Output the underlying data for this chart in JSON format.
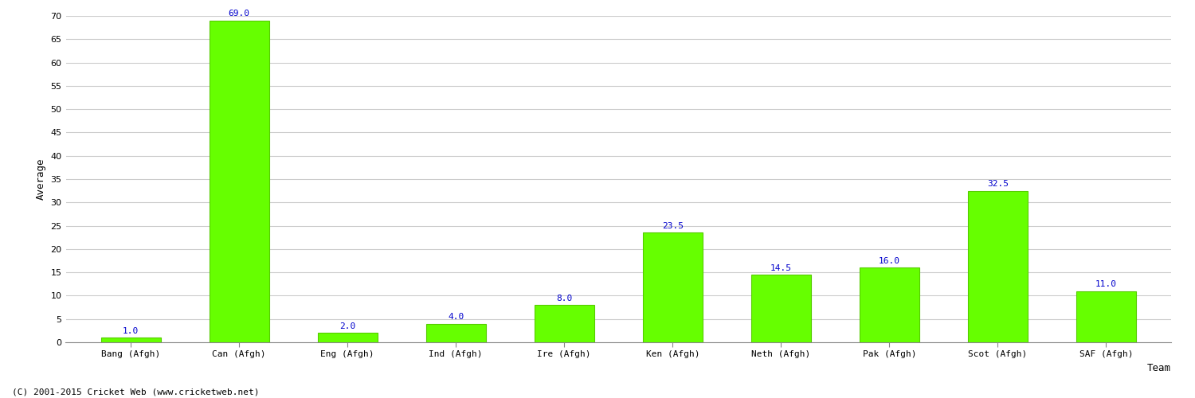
{
  "categories": [
    "Bang (Afgh)",
    "Can (Afgh)",
    "Eng (Afgh)",
    "Ind (Afgh)",
    "Ire (Afgh)",
    "Ken (Afgh)",
    "Neth (Afgh)",
    "Pak (Afgh)",
    "Scot (Afgh)",
    "SAF (Afgh)"
  ],
  "values": [
    1.0,
    69.0,
    2.0,
    4.0,
    8.0,
    23.5,
    14.5,
    16.0,
    32.5,
    11.0
  ],
  "bar_color": "#66ff00",
  "bar_edge_color": "#55cc00",
  "value_color": "#0000cc",
  "ylabel": "Average",
  "xlabel": "Team",
  "ylim": [
    0,
    70
  ],
  "yticks": [
    0,
    5,
    10,
    15,
    20,
    25,
    30,
    35,
    40,
    45,
    50,
    55,
    60,
    65,
    70
  ],
  "background_color": "#ffffff",
  "grid_color": "#cccccc",
  "footer": "(C) 2001-2015 Cricket Web (www.cricketweb.net)",
  "value_fontsize": 8,
  "axis_label_fontsize": 9,
  "tick_fontsize": 8,
  "footer_fontsize": 8
}
